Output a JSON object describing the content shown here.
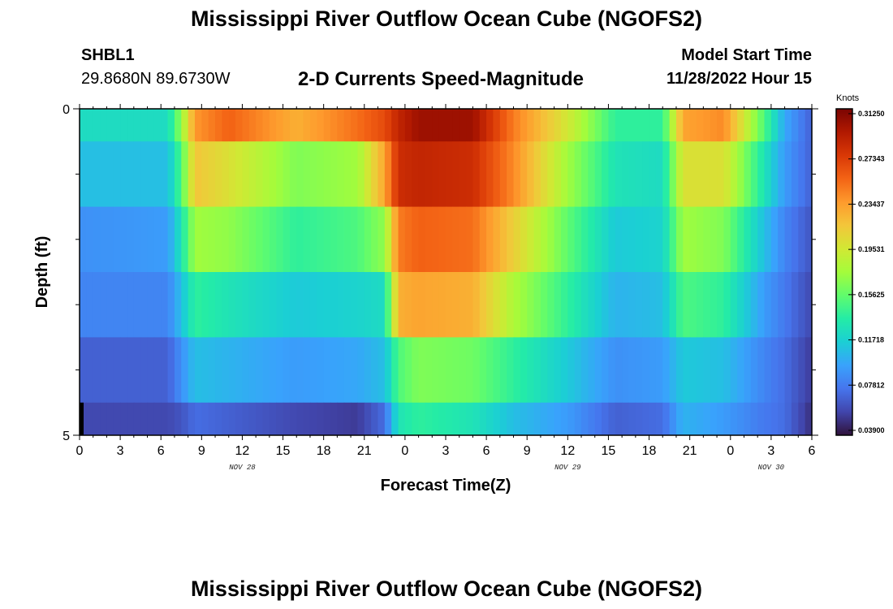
{
  "header": {
    "title": "Mississippi River Outflow Ocean Cube (NGOFS2)",
    "station_id": "SHBL1",
    "station_coords": "29.8680N  89.6730W",
    "variable_title": "2-D Currents Speed-Magnitude",
    "model_start_label": "Model Start Time",
    "model_start_value": "11/28/2022 Hour 15"
  },
  "footer": {
    "next_title": "Mississippi River Outflow Ocean Cube (NGOFS2)"
  },
  "chart_data": {
    "type": "heatmap",
    "xlabel": "Forecast Time(Z)",
    "ylabel": "Depth (ft)",
    "x_tick_labels": [
      "0",
      "3",
      "6",
      "9",
      "12",
      "15",
      "18",
      "21",
      "0",
      "3",
      "6",
      "9",
      "12",
      "15",
      "18",
      "21",
      "0",
      "3",
      "6"
    ],
    "x_date_labels": [
      {
        "label": "NOV 28",
        "at_hour": 12
      },
      {
        "label": "NOV 29",
        "at_hour": 36
      },
      {
        "label": "NOV 30",
        "at_hour": 51
      }
    ],
    "x_range_hours": [
      0,
      54
    ],
    "y_tick_labels": [
      "0",
      "5"
    ],
    "ylim": [
      0,
      5
    ],
    "colorbar": {
      "unit": "Knots",
      "min": 0.039,
      "max": 0.3125,
      "tick_labels": [
        "0.31250",
        "0.27343",
        "0.23437",
        "0.19531",
        "0.15625",
        "0.11718",
        "0.07812",
        "0.03900"
      ],
      "colors": [
        "#30123b",
        "#4145ab",
        "#4675ed",
        "#39a2fc",
        "#1bcfd4",
        "#24eca6",
        "#61fc6c",
        "#a4fc3b",
        "#d1e834",
        "#f3c63a",
        "#fe9b2d",
        "#f36315",
        "#d93806",
        "#b11901",
        "#7a0402"
      ]
    },
    "layer_boundaries_ft": [
      0,
      0.5,
      1.5,
      2.5,
      3.5,
      4.5,
      5
    ],
    "keyframe_hours": [
      0,
      6.5,
      7.5,
      8.5,
      11,
      16,
      20.5,
      22.5,
      23.5,
      25,
      29,
      32,
      36,
      39.5,
      43,
      44.5,
      47.5,
      50.5,
      52,
      54
    ],
    "layers": [
      {
        "depth_ft": [
          0,
          0.5
        ],
        "speed_kt": [
          0.125,
          0.125,
          0.17,
          0.235,
          0.255,
          0.225,
          0.25,
          0.265,
          0.285,
          0.3,
          0.3,
          0.245,
          0.195,
          0.14,
          0.14,
          0.23,
          0.24,
          0.15,
          0.1,
          0.07
        ]
      },
      {
        "depth_ft": [
          0.5,
          1.5
        ],
        "speed_kt": [
          0.11,
          0.11,
          0.15,
          0.215,
          0.2,
          0.165,
          0.175,
          0.23,
          0.28,
          0.285,
          0.28,
          0.24,
          0.175,
          0.13,
          0.125,
          0.2,
          0.2,
          0.13,
          0.095,
          0.07
        ]
      },
      {
        "depth_ft": [
          1.5,
          2.5
        ],
        "speed_kt": [
          0.09,
          0.095,
          0.13,
          0.175,
          0.17,
          0.14,
          0.15,
          0.17,
          0.245,
          0.255,
          0.25,
          0.21,
          0.155,
          0.115,
          0.12,
          0.175,
          0.165,
          0.11,
          0.085,
          0.065
        ]
      },
      {
        "depth_ft": [
          2.5,
          3.5
        ],
        "speed_kt": [
          0.085,
          0.085,
          0.11,
          0.14,
          0.13,
          0.115,
          0.12,
          0.125,
          0.225,
          0.23,
          0.225,
          0.18,
          0.14,
          0.105,
          0.11,
          0.15,
          0.14,
          0.095,
          0.08,
          0.06
        ]
      },
      {
        "depth_ft": [
          3.5,
          4.5
        ],
        "speed_kt": [
          0.07,
          0.07,
          0.09,
          0.11,
          0.105,
          0.095,
          0.1,
          0.11,
          0.15,
          0.165,
          0.16,
          0.14,
          0.115,
          0.09,
          0.095,
          0.115,
          0.11,
          0.085,
          0.075,
          0.055
        ]
      },
      {
        "depth_ft": [
          4.5,
          5
        ],
        "speed_kt": [
          0.06,
          0.06,
          0.065,
          0.075,
          0.07,
          0.06,
          0.055,
          0.075,
          0.13,
          0.14,
          0.13,
          0.11,
          0.095,
          0.07,
          0.075,
          0.105,
          0.095,
          0.08,
          0.075,
          0.05
        ]
      }
    ]
  }
}
